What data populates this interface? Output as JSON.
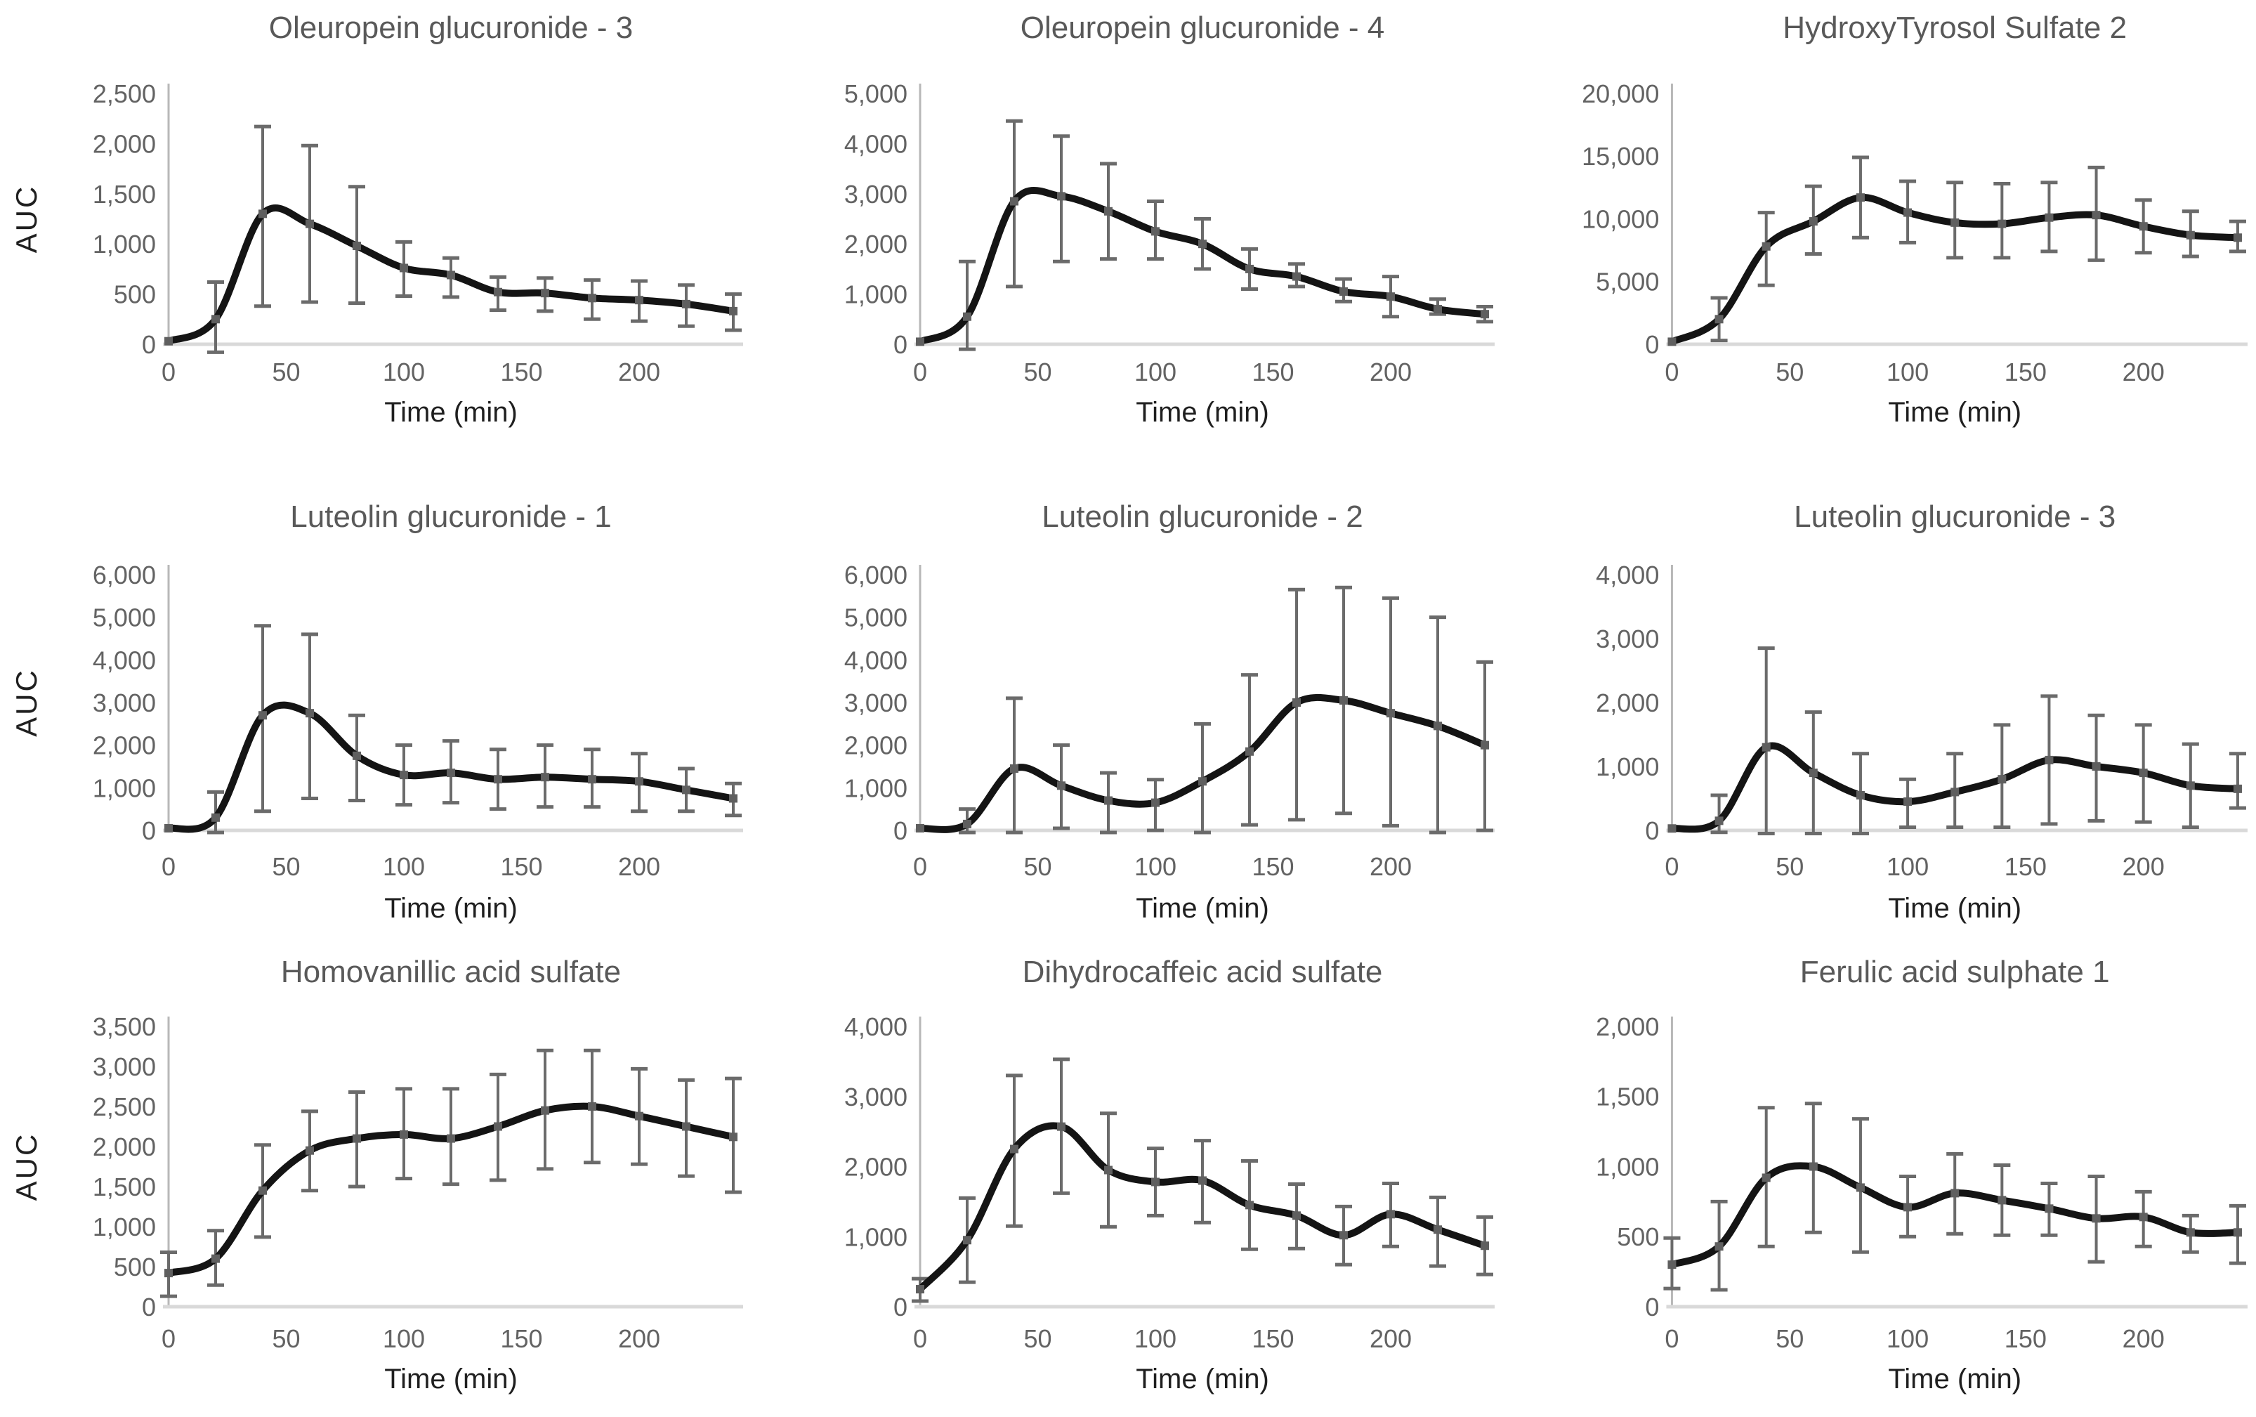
{
  "figure": {
    "background": "#ffffff",
    "grid_rows": 3,
    "grid_cols": 3
  },
  "colors": {
    "title_text": "#595959",
    "tick_text": "#636363",
    "axis_text_dark": "#1f1f1f",
    "curve": "#141414",
    "error_bar": "#6b6b6b",
    "marker": "#5f5f5f",
    "y_axis_line": "#b8b8b8",
    "x_baseline": "#d9d9d9"
  },
  "chart_data": [
    {
      "type": "line",
      "title": "Oleuropein glucuronide - 3",
      "xlabel": "Time (min)",
      "ylabel": "AUC",
      "xlim": [
        0,
        240
      ],
      "xticks": [
        0,
        50,
        100,
        150,
        200
      ],
      "ylim": [
        0,
        2500
      ],
      "ytick_step": 500,
      "grid": false,
      "legend": "none",
      "x": [
        0,
        20,
        40,
        60,
        80,
        100,
        120,
        140,
        160,
        180,
        200,
        220,
        240
      ],
      "values": [
        30,
        250,
        1300,
        1200,
        980,
        760,
        690,
        520,
        510,
        460,
        440,
        400,
        330
      ],
      "err_low": [
        null,
        -80,
        380,
        420,
        410,
        480,
        470,
        340,
        330,
        250,
        230,
        180,
        140
      ],
      "err_high": [
        null,
        620,
        2170,
        1980,
        1570,
        1020,
        860,
        670,
        660,
        640,
        630,
        590,
        500
      ]
    },
    {
      "type": "line",
      "title": "Oleuropein glucuronide - 4",
      "xlabel": "Time (min)",
      "ylabel": "",
      "xlim": [
        0,
        240
      ],
      "xticks": [
        0,
        50,
        100,
        150,
        200
      ],
      "ylim": [
        0,
        5000
      ],
      "ytick_step": 1000,
      "grid": false,
      "legend": "none",
      "x": [
        0,
        20,
        40,
        60,
        80,
        100,
        120,
        140,
        160,
        180,
        200,
        220,
        240
      ],
      "values": [
        50,
        550,
        2850,
        2950,
        2650,
        2250,
        2000,
        1500,
        1350,
        1050,
        950,
        700,
        600
      ],
      "err_low": [
        null,
        -100,
        1150,
        1650,
        1700,
        1700,
        1500,
        1100,
        1150,
        850,
        550,
        600,
        450
      ],
      "err_high": [
        null,
        1650,
        4450,
        4150,
        3600,
        2850,
        2500,
        1900,
        1600,
        1300,
        1350,
        900,
        750
      ]
    },
    {
      "type": "line",
      "title": "HydroxyTyrosol Sulfate 2",
      "xlabel": "Time (min)",
      "ylabel": "",
      "xlim": [
        0,
        240
      ],
      "xticks": [
        0,
        50,
        100,
        150,
        200
      ],
      "ylim": [
        0,
        20000
      ],
      "ytick_step": 5000,
      "grid": false,
      "legend": "none",
      "x": [
        0,
        20,
        40,
        60,
        80,
        100,
        120,
        140,
        160,
        180,
        200,
        220,
        240
      ],
      "values": [
        200,
        2000,
        7800,
        9800,
        11700,
        10500,
        9700,
        9600,
        10100,
        10300,
        9400,
        8700,
        8500
      ],
      "err_low": [
        null,
        300,
        4700,
        7200,
        8500,
        8100,
        6900,
        6900,
        7400,
        6700,
        7300,
        7000,
        7400
      ],
      "err_high": [
        null,
        3700,
        10500,
        12600,
        14900,
        13000,
        12900,
        12800,
        12900,
        14100,
        11500,
        10600,
        9800
      ]
    },
    {
      "type": "line",
      "title": "Luteolin glucuronide - 1",
      "xlabel": "Time (min)",
      "ylabel": "AUC",
      "xlim": [
        0,
        240
      ],
      "xticks": [
        0,
        50,
        100,
        150,
        200
      ],
      "ylim": [
        0,
        6000
      ],
      "ytick_step": 1000,
      "grid": false,
      "legend": "none",
      "x": [
        0,
        20,
        40,
        60,
        80,
        100,
        120,
        140,
        160,
        180,
        200,
        220,
        240
      ],
      "values": [
        50,
        300,
        2700,
        2750,
        1750,
        1300,
        1350,
        1200,
        1250,
        1200,
        1150,
        950,
        750
      ],
      "err_low": [
        null,
        -50,
        450,
        750,
        700,
        600,
        650,
        500,
        550,
        550,
        450,
        450,
        350
      ],
      "err_high": [
        null,
        900,
        4800,
        4600,
        2700,
        2000,
        2100,
        1900,
        2000,
        1900,
        1800,
        1450,
        1100
      ]
    },
    {
      "type": "line",
      "title": "Luteolin glucuronide - 2",
      "xlabel": "Time (min)",
      "ylabel": "",
      "xlim": [
        0,
        240
      ],
      "xticks": [
        0,
        50,
        100,
        150,
        200
      ],
      "ylim": [
        0,
        6000
      ],
      "ytick_step": 1000,
      "grid": false,
      "legend": "none",
      "x": [
        0,
        20,
        40,
        60,
        80,
        100,
        120,
        140,
        160,
        180,
        200,
        220,
        240
      ],
      "values": [
        50,
        150,
        1450,
        1050,
        700,
        650,
        1150,
        1850,
        3000,
        3050,
        2750,
        2450,
        2000
      ],
      "err_low": [
        null,
        -50,
        -50,
        50,
        -50,
        0,
        -50,
        130,
        250,
        400,
        110,
        -50,
        0
      ],
      "err_high": [
        null,
        500,
        3100,
        2000,
        1350,
        1190,
        2500,
        3650,
        5650,
        5700,
        5450,
        5000,
        3950
      ]
    },
    {
      "type": "line",
      "title": "Luteolin glucuronide - 3",
      "xlabel": "Time (min)",
      "ylabel": "",
      "xlim": [
        0,
        240
      ],
      "xticks": [
        0,
        50,
        100,
        150,
        200
      ],
      "ylim": [
        0,
        4000
      ],
      "ytick_step": 1000,
      "grid": false,
      "legend": "none",
      "x": [
        0,
        20,
        40,
        60,
        80,
        100,
        120,
        140,
        160,
        180,
        200,
        220,
        240
      ],
      "values": [
        30,
        150,
        1300,
        900,
        550,
        450,
        600,
        800,
        1100,
        1000,
        900,
        700,
        650
      ],
      "err_low": [
        null,
        -30,
        -50,
        -50,
        -50,
        50,
        50,
        50,
        100,
        150,
        130,
        50,
        350
      ],
      "err_high": [
        null,
        550,
        2850,
        1850,
        1200,
        800,
        1200,
        1650,
        2100,
        1800,
        1650,
        1350,
        1200
      ]
    },
    {
      "type": "line",
      "title": "Homovanillic acid sulfate",
      "xlabel": "Time (min)",
      "ylabel": "AUC",
      "xlim": [
        0,
        240
      ],
      "xticks": [
        0,
        50,
        100,
        150,
        200
      ],
      "ylim": [
        0,
        3500
      ],
      "ytick_step": 500,
      "grid": false,
      "legend": "none",
      "x": [
        0,
        20,
        40,
        60,
        80,
        100,
        120,
        140,
        160,
        180,
        200,
        220,
        240
      ],
      "values": [
        420,
        600,
        1450,
        1950,
        2100,
        2150,
        2100,
        2250,
        2450,
        2500,
        2380,
        2250,
        2120
      ],
      "err_low": [
        130,
        270,
        870,
        1450,
        1500,
        1600,
        1530,
        1580,
        1720,
        1800,
        1780,
        1630,
        1430
      ],
      "err_high": [
        680,
        950,
        2020,
        2440,
        2680,
        2720,
        2720,
        2900,
        3200,
        3200,
        2970,
        2830,
        2850
      ]
    },
    {
      "type": "line",
      "title": "Dihydrocaffeic acid sulfate",
      "xlabel": "Time (min)",
      "ylabel": "",
      "xlim": [
        0,
        240
      ],
      "xticks": [
        0,
        50,
        100,
        150,
        200
      ],
      "ylim": [
        0,
        4000
      ],
      "ytick_step": 1000,
      "grid": false,
      "legend": "none",
      "x": [
        0,
        20,
        40,
        60,
        80,
        100,
        120,
        140,
        160,
        180,
        200,
        220,
        240
      ],
      "values": [
        250,
        950,
        2250,
        2570,
        1950,
        1780,
        1800,
        1450,
        1300,
        1020,
        1320,
        1100,
        870
      ],
      "err_low": [
        80,
        350,
        1150,
        1620,
        1140,
        1300,
        1200,
        820,
        830,
        600,
        860,
        580,
        460
      ],
      "err_high": [
        400,
        1550,
        3300,
        3530,
        2760,
        2260,
        2370,
        2080,
        1750,
        1430,
        1760,
        1560,
        1280
      ]
    },
    {
      "type": "line",
      "title": "Ferulic acid sulphate 1",
      "xlabel": "Time (min)",
      "ylabel": "",
      "xlim": [
        0,
        240
      ],
      "xticks": [
        0,
        50,
        100,
        150,
        200
      ],
      "ylim": [
        0,
        2000
      ],
      "ytick_step": 500,
      "grid": false,
      "legend": "none",
      "x": [
        0,
        20,
        40,
        60,
        80,
        100,
        120,
        140,
        160,
        180,
        200,
        220,
        240
      ],
      "values": [
        300,
        430,
        920,
        1000,
        850,
        710,
        810,
        760,
        700,
        630,
        640,
        530,
        530
      ],
      "err_low": [
        130,
        120,
        430,
        530,
        390,
        500,
        520,
        510,
        510,
        320,
        430,
        390,
        310
      ],
      "err_high": [
        490,
        750,
        1420,
        1450,
        1340,
        930,
        1090,
        1010,
        880,
        930,
        820,
        650,
        720
      ]
    }
  ]
}
